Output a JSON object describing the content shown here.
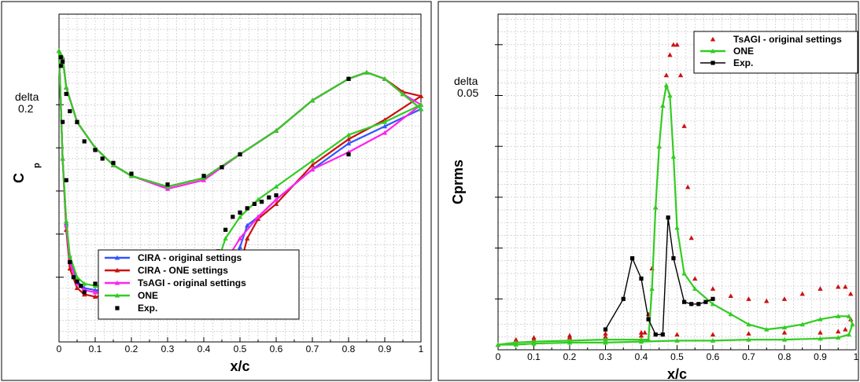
{
  "chart_data": [
    {
      "type": "line",
      "xlabel": "x/c",
      "ylabel": "Cp",
      "ylabel_sub": "p",
      "delta_label": "delta",
      "delta_value": "0.2",
      "xlim": [
        0,
        1
      ],
      "ylim": [
        -1.3,
        0.22
      ],
      "yticks_major": [
        -0.2,
        -0.4,
        -0.6,
        -0.8,
        -1.0
      ],
      "y_axis_inverted": true,
      "xticks": [
        0,
        0.1,
        0.2,
        0.3,
        0.4,
        0.5,
        0.6,
        0.7,
        0.8,
        0.9,
        1
      ],
      "xtick_labels": [
        "0",
        "0.1",
        "0.2",
        "0.3",
        "0.4",
        "0.5",
        "0.6",
        "0.7",
        "0.8",
        "0.9",
        "1"
      ],
      "grid": true,
      "legend_position": "bottom-center",
      "series": [
        {
          "name": "CIRA - original settings",
          "color": "#3355ff",
          "marker": "triangle",
          "upper": {
            "x": [
              0,
              0.01,
              0.02,
              0.03,
              0.05,
              0.07,
              0.1,
              0.15,
              0.2,
              0.3,
              0.4,
              0.44,
              0.46,
              0.48,
              0.5,
              0.52,
              0.55,
              0.6,
              0.7,
              0.8,
              0.9,
              1.0
            ],
            "y": [
              0.05,
              -0.45,
              -0.75,
              -0.92,
              -1.02,
              -1.05,
              -1.06,
              -1.06,
              -1.06,
              -1.06,
              -1.06,
              -1.06,
              -1.03,
              -0.98,
              -0.86,
              -0.76,
              -0.72,
              -0.64,
              -0.5,
              -0.38,
              -0.3,
              -0.22
            ]
          },
          "lower": {
            "x": [
              0,
              0.01,
              0.02,
              0.05,
              0.1,
              0.15,
              0.2,
              0.3,
              0.4,
              0.5,
              0.6,
              0.7,
              0.8,
              0.85,
              0.9,
              0.95,
              1.0
            ],
            "y": [
              0.05,
              0.02,
              -0.12,
              -0.28,
              -0.4,
              -0.48,
              -0.53,
              -0.58,
              -0.54,
              -0.43,
              -0.32,
              -0.18,
              -0.08,
              -0.05,
              -0.08,
              -0.15,
              -0.22
            ]
          }
        },
        {
          "name": "CIRA - ONE settings",
          "color": "#cc1111",
          "marker": "triangle",
          "upper": {
            "x": [
              0,
              0.01,
              0.02,
              0.03,
              0.05,
              0.07,
              0.1,
              0.15,
              0.2,
              0.3,
              0.4,
              0.44,
              0.48,
              0.5,
              0.52,
              0.55,
              0.6,
              0.7,
              0.8,
              0.9,
              1.0
            ],
            "y": [
              0.05,
              -0.45,
              -0.78,
              -0.96,
              -1.05,
              -1.08,
              -1.09,
              -1.09,
              -1.09,
              -1.09,
              -1.09,
              -1.1,
              -1.12,
              -0.95,
              -0.82,
              -0.73,
              -0.66,
              -0.48,
              -0.36,
              -0.27,
              -0.16
            ]
          },
          "lower": {
            "x": [
              0,
              0.01,
              0.02,
              0.05,
              0.1,
              0.15,
              0.2,
              0.3,
              0.4,
              0.5,
              0.6,
              0.7,
              0.8,
              0.85,
              0.9,
              0.95,
              1.0
            ],
            "y": [
              0.05,
              0.02,
              -0.12,
              -0.28,
              -0.4,
              -0.48,
              -0.53,
              -0.58,
              -0.54,
              -0.43,
              -0.32,
              -0.18,
              -0.08,
              -0.05,
              -0.08,
              -0.14,
              -0.16
            ]
          }
        },
        {
          "name": "TsAGI - original settings",
          "color": "#ff22ee",
          "marker": "triangle",
          "upper": {
            "x": [
              0,
              0.01,
              0.02,
              0.03,
              0.05,
              0.07,
              0.1,
              0.15,
              0.2,
              0.3,
              0.4,
              0.43,
              0.45,
              0.47,
              0.5,
              0.55,
              0.6,
              0.7,
              0.8,
              0.9,
              1.0
            ],
            "y": [
              0.05,
              -0.45,
              -0.76,
              -0.93,
              -1.03,
              -1.06,
              -1.07,
              -1.07,
              -1.07,
              -1.07,
              -1.07,
              -1.07,
              -1.0,
              -0.9,
              -0.82,
              -0.72,
              -0.64,
              -0.5,
              -0.42,
              -0.33,
              -0.2
            ]
          },
          "lower": {
            "x": [
              0,
              0.01,
              0.02,
              0.05,
              0.1,
              0.15,
              0.2,
              0.3,
              0.4,
              0.5,
              0.6,
              0.7,
              0.8,
              0.85,
              0.9,
              0.95,
              1.0
            ],
            "y": [
              0.05,
              0.02,
              -0.12,
              -0.28,
              -0.4,
              -0.48,
              -0.53,
              -0.59,
              -0.55,
              -0.43,
              -0.32,
              -0.18,
              -0.08,
              -0.05,
              -0.08,
              -0.15,
              -0.2
            ]
          }
        },
        {
          "name": "ONE",
          "color": "#33cc22",
          "marker": "triangle",
          "upper": {
            "x": [
              0,
              0.01,
              0.02,
              0.03,
              0.05,
              0.07,
              0.1,
              0.15,
              0.2,
              0.3,
              0.4,
              0.42,
              0.44,
              0.46,
              0.5,
              0.55,
              0.6,
              0.7,
              0.8,
              0.9,
              1.0
            ],
            "y": [
              0.05,
              -0.45,
              -0.74,
              -0.9,
              -1.0,
              -1.03,
              -1.04,
              -1.04,
              -1.04,
              -1.04,
              -1.04,
              -1.0,
              -0.92,
              -0.82,
              -0.72,
              -0.64,
              -0.58,
              -0.46,
              -0.34,
              -0.28,
              -0.2
            ]
          },
          "lower": {
            "x": [
              0,
              0.01,
              0.02,
              0.05,
              0.1,
              0.15,
              0.2,
              0.3,
              0.4,
              0.5,
              0.6,
              0.7,
              0.8,
              0.85,
              0.9,
              0.95,
              1.0
            ],
            "y": [
              0.05,
              0.02,
              -0.12,
              -0.28,
              -0.4,
              -0.48,
              -0.53,
              -0.58,
              -0.54,
              -0.43,
              -0.32,
              -0.18,
              -0.08,
              -0.05,
              -0.08,
              -0.15,
              -0.22
            ]
          }
        },
        {
          "name": "Exp.",
          "color": "#000000",
          "marker": "square",
          "line": false,
          "upper": {
            "x": [
              0.005,
              0.01,
              0.02,
              0.03,
              0.04,
              0.05,
              0.06,
              0.07,
              0.1,
              0.12,
              0.15,
              0.17,
              0.2,
              0.22,
              0.25,
              0.27,
              0.3,
              0.32,
              0.35,
              0.37,
              0.4,
              0.42,
              0.44,
              0.46,
              0.48,
              0.5,
              0.52,
              0.54,
              0.56,
              0.58,
              0.6,
              0.8
            ],
            "y": [
              0.02,
              -0.28,
              -0.55,
              -0.93,
              -1.0,
              -1.02,
              -1.04,
              -1.07,
              -1.03,
              -1.03,
              -1.03,
              -1.03,
              -1.03,
              -1.03,
              -1.03,
              -1.03,
              -1.03,
              -1.03,
              -1.03,
              -1.03,
              -1.03,
              -0.98,
              -0.88,
              -0.78,
              -0.72,
              -0.7,
              -0.68,
              -0.66,
              -0.65,
              -0.63,
              -0.62,
              -0.43
            ]
          },
          "lower": {
            "x": [
              0.005,
              0.01,
              0.02,
              0.03,
              0.05,
              0.07,
              0.1,
              0.12,
              0.15,
              0.2,
              0.3,
              0.4,
              0.45,
              0.5,
              0.8
            ],
            "y": [
              -0.02,
              0.0,
              -0.15,
              -0.23,
              -0.28,
              -0.37,
              -0.41,
              -0.45,
              -0.47,
              -0.52,
              -0.57,
              -0.53,
              -0.49,
              -0.43,
              -0.08
            ]
          }
        }
      ]
    },
    {
      "type": "line",
      "xlabel": "x/c",
      "ylabel": "Cprms",
      "delta_label": "delta",
      "delta_value": "0.05",
      "xlim": [
        0,
        1
      ],
      "ylim": [
        0,
        0.33
      ],
      "yticks_major": [
        0.05,
        0.1,
        0.15,
        0.2,
        0.25,
        0.3
      ],
      "xticks": [
        0,
        0.1,
        0.2,
        0.3,
        0.4,
        0.5,
        0.6,
        0.7,
        0.8,
        0.9,
        1
      ],
      "xtick_labels": [
        "0",
        "0.1",
        "0.2",
        "0.3",
        "0.4",
        "0.5",
        "0.6",
        "0.7",
        "0.8",
        "0.9",
        "1"
      ],
      "grid": true,
      "legend_position": "top-right",
      "series": [
        {
          "name": "TsAGI - original settings",
          "color": "#cc1111",
          "marker": "triangle",
          "line": false,
          "loop": {
            "x": [
              0.0,
              0.05,
              0.1,
              0.2,
              0.3,
              0.4,
              0.41,
              0.42,
              0.43,
              0.44,
              0.45,
              0.46,
              0.47,
              0.48,
              0.49,
              0.5,
              0.51,
              0.52,
              0.53,
              0.54,
              0.55,
              0.6,
              0.65,
              0.7,
              0.75,
              0.8,
              0.85,
              0.9,
              0.95,
              0.97,
              0.985,
              0.985,
              0.97,
              0.95,
              0.9,
              0.8,
              0.7,
              0.6,
              0.5,
              0.4,
              0.3,
              0.2,
              0.1,
              0.05,
              0.0
            ],
            "y": [
              0.005,
              0.01,
              0.012,
              0.014,
              0.016,
              0.017,
              0.017,
              0.035,
              0.08,
              0.14,
              0.2,
              0.24,
              0.27,
              0.29,
              0.3,
              0.3,
              0.27,
              0.22,
              0.16,
              0.11,
              0.07,
              0.06,
              0.053,
              0.05,
              0.048,
              0.05,
              0.055,
              0.06,
              0.062,
              0.062,
              0.055,
              0.03,
              0.02,
              0.018,
              0.017,
              0.017,
              0.016,
              0.015,
              0.015,
              0.014,
              0.013,
              0.012,
              0.01,
              0.007,
              0.005
            ]
          }
        },
        {
          "name": "ONE",
          "color": "#33cc22",
          "marker": "triangle",
          "line": true,
          "loop": {
            "x": [
              0.0,
              0.05,
              0.1,
              0.2,
              0.3,
              0.4,
              0.42,
              0.43,
              0.44,
              0.45,
              0.46,
              0.47,
              0.48,
              0.49,
              0.5,
              0.52,
              0.55,
              0.6,
              0.65,
              0.7,
              0.75,
              0.8,
              0.85,
              0.9,
              0.95,
              0.98,
              0.99,
              0.98,
              0.95,
              0.9,
              0.8,
              0.7,
              0.6,
              0.5,
              0.4,
              0.3,
              0.2,
              0.1,
              0.05,
              0.0
            ],
            "y": [
              0.005,
              0.007,
              0.008,
              0.009,
              0.01,
              0.01,
              0.01,
              0.06,
              0.14,
              0.2,
              0.24,
              0.26,
              0.25,
              0.19,
              0.12,
              0.075,
              0.06,
              0.045,
              0.035,
              0.025,
              0.02,
              0.022,
              0.025,
              0.03,
              0.033,
              0.033,
              0.025,
              0.015,
              0.012,
              0.011,
              0.01,
              0.01,
              0.009,
              0.009,
              0.008,
              0.007,
              0.007,
              0.006,
              0.005,
              0.005
            ]
          }
        },
        {
          "name": "Exp.",
          "color": "#000000",
          "marker": "square",
          "line": true,
          "x": [
            0.3,
            0.35,
            0.375,
            0.4,
            0.42,
            0.44,
            0.46,
            0.475,
            0.49,
            0.52,
            0.54,
            0.56,
            0.58,
            0.6
          ],
          "y": [
            0.02,
            0.05,
            0.09,
            0.07,
            0.03,
            0.015,
            0.015,
            0.13,
            0.09,
            0.047,
            0.045,
            0.045,
            0.047,
            0.05
          ]
        }
      ]
    }
  ]
}
